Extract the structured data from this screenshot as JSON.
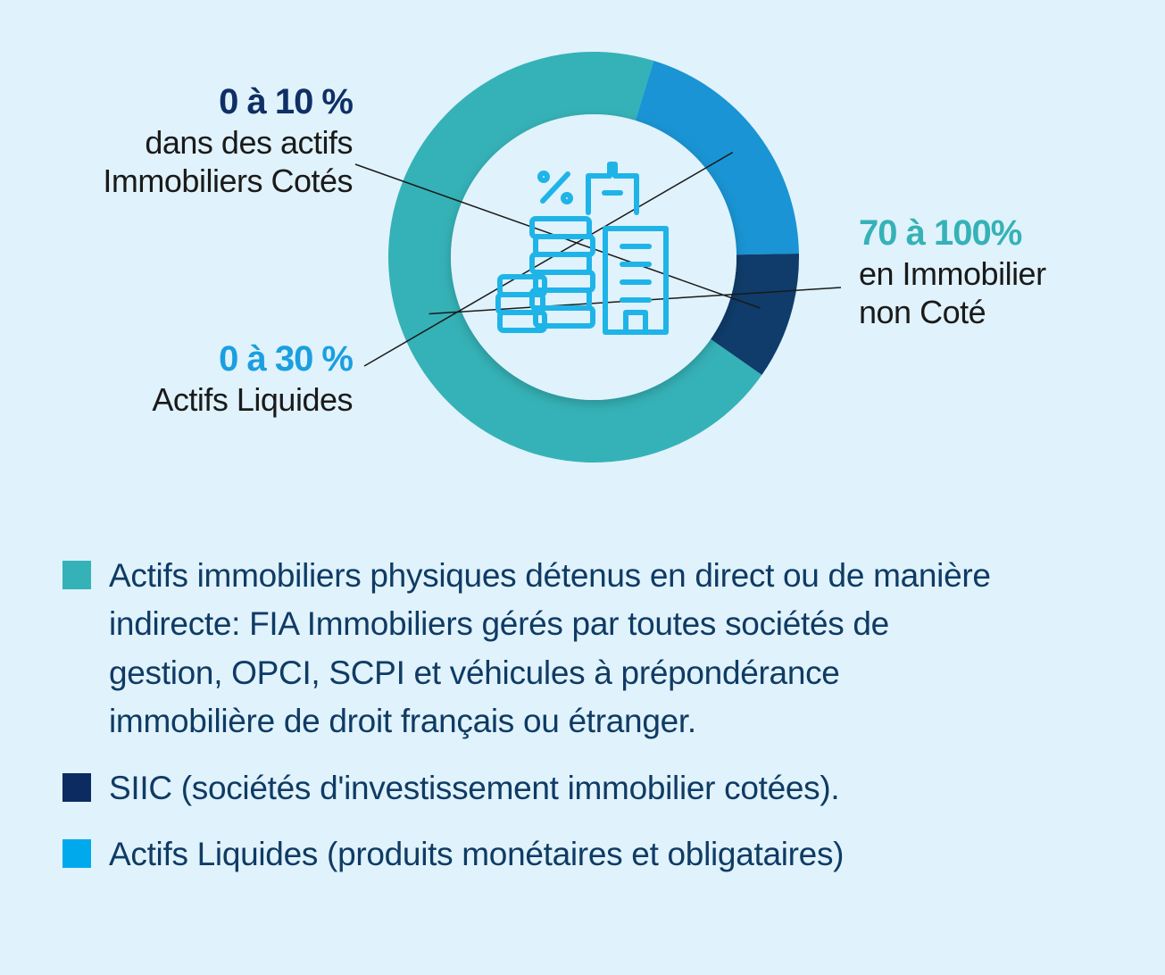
{
  "chart_data": {
    "type": "pie",
    "variant": "donut",
    "slices": [
      {
        "key": "immo_non_cote",
        "value": 70,
        "range": "70 à 100%",
        "label": [
          "en Immobilier",
          "non Coté"
        ],
        "color": "#35b2b7"
      },
      {
        "key": "liquides",
        "value": 20,
        "range": "0 à 30 %",
        "label": [
          "Actifs Liquides"
        ],
        "color": "#1a94d4"
      },
      {
        "key": "immo_cote",
        "value": 10,
        "range": "0 à 10 %",
        "label": [
          "dans des actifs",
          "Immobiliers Cotés"
        ],
        "color": "#0f3c6a"
      }
    ],
    "legend": [
      {
        "color": "#35b2b7",
        "text": "Actifs immobiliers physiques détenus en direct ou de manière indirecte: FIA Immobiliers gérés par toutes sociétés de gestion, OPCI, SCPI et véhicules à prépondérance immobilière de droit français ou étranger."
      },
      {
        "color": "#0b2b61",
        "text": "SIIC (sociétés d'investissement immobilier cotées)."
      },
      {
        "color": "#00a9ec",
        "text": "Actifs Liquides (produits monétaires et obligataires)"
      }
    ],
    "center_icon": "buildings-coins-percent-icon",
    "legend_position": "bottom"
  },
  "colors": {
    "background": "#e0f2fb",
    "center_circle": "#e0f2fb",
    "icon": "#1fb4e8",
    "pct_cote": "#0f2f66",
    "pct_liquides": "#1a9fe0",
    "pct_non_cote": "#35b2b7"
  }
}
